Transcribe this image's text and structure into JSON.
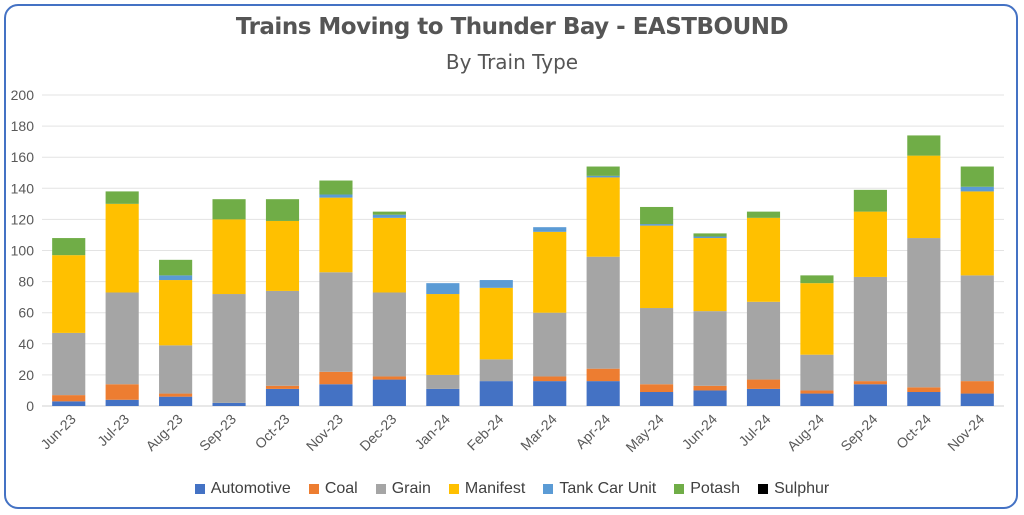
{
  "chart_data": {
    "type": "bar",
    "stacked": true,
    "title": "Trains Moving to Thunder Bay - EASTBOUND",
    "subtitle": "By Train Type",
    "xlabel": "",
    "ylabel": "",
    "ylim": [
      0,
      200
    ],
    "yticks": [
      0,
      20,
      40,
      60,
      80,
      100,
      120,
      140,
      160,
      180,
      200
    ],
    "grid": true,
    "legend_position": "bottom",
    "categories": [
      "Jun-23",
      "Jul-23",
      "Aug-23",
      "Sep-23",
      "Oct-23",
      "Nov-23",
      "Dec-23",
      "Jan-24",
      "Feb-24",
      "Mar-24",
      "Apr-24",
      "May-24",
      "Jun-24",
      "Jul-24",
      "Aug-24",
      "Sep-24",
      "Oct-24",
      "Nov-24"
    ],
    "series": [
      {
        "name": "Automotive",
        "color": "#4472c4",
        "values": [
          3,
          4,
          6,
          2,
          11,
          14,
          17,
          11,
          16,
          16,
          16,
          9,
          10,
          11,
          8,
          14,
          9,
          8
        ]
      },
      {
        "name": "Coal",
        "color": "#ed7d31",
        "values": [
          4,
          10,
          2,
          0,
          2,
          8,
          2,
          0,
          0,
          3,
          8,
          5,
          3,
          6,
          2,
          2,
          3,
          8
        ]
      },
      {
        "name": "Grain",
        "color": "#a5a5a5",
        "values": [
          40,
          59,
          31,
          70,
          61,
          64,
          54,
          9,
          14,
          41,
          72,
          49,
          48,
          50,
          23,
          67,
          96,
          68
        ]
      },
      {
        "name": "Manifest",
        "color": "#ffc000",
        "values": [
          50,
          57,
          42,
          48,
          45,
          48,
          48,
          52,
          46,
          52,
          51,
          53,
          47,
          54,
          46,
          42,
          53,
          54
        ]
      },
      {
        "name": "Tank Car Unit",
        "color": "#5b9bd5",
        "values": [
          0,
          0,
          3,
          0,
          0,
          2,
          2,
          7,
          5,
          3,
          1,
          1,
          1,
          0,
          0,
          0,
          0,
          3
        ]
      },
      {
        "name": "Potash",
        "color": "#70ad47",
        "values": [
          11,
          8,
          10,
          13,
          14,
          9,
          2,
          0,
          0,
          0,
          6,
          11,
          2,
          4,
          5,
          14,
          13,
          13
        ]
      },
      {
        "name": "Sulphur",
        "color": "#000000",
        "values": [
          0,
          0,
          0,
          0,
          0,
          0,
          0,
          0,
          0,
          0,
          0,
          0,
          0,
          0,
          0,
          0,
          0,
          0
        ]
      }
    ]
  }
}
